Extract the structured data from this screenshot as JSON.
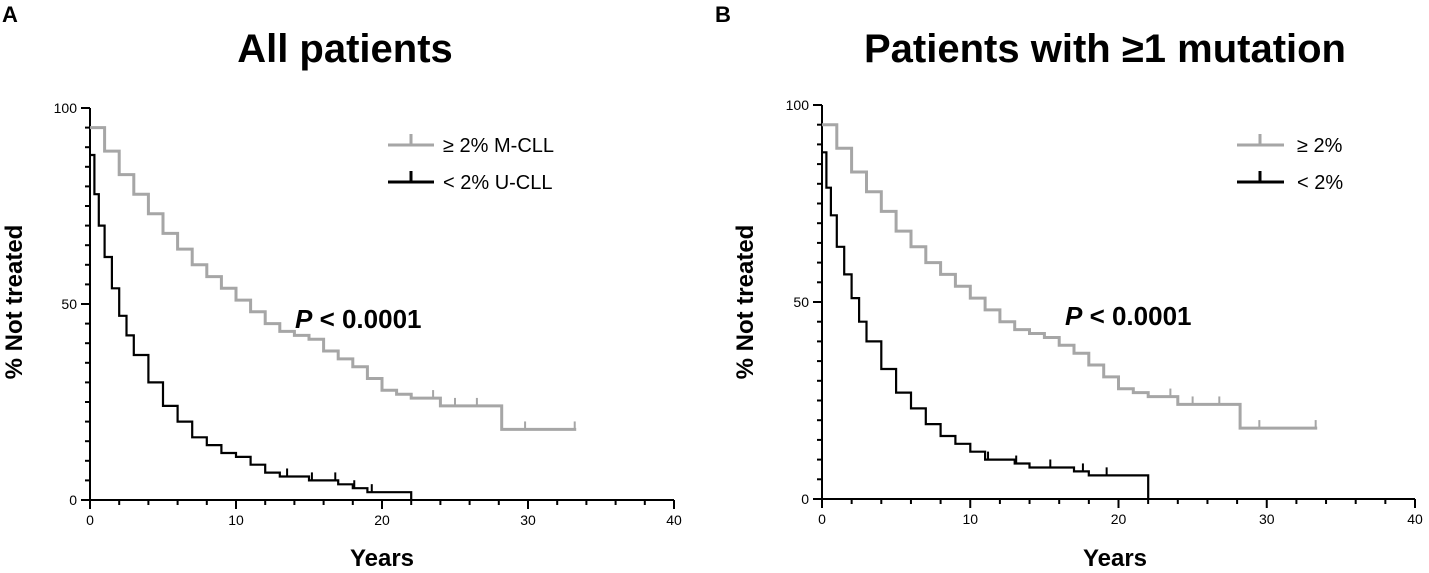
{
  "colors": {
    "high_group": "#a6a6a6",
    "low_group": "#000000",
    "axis": "#000000"
  },
  "chart_data": [
    {
      "type": "line",
      "panel": "A",
      "title": "All patients",
      "xlabel": "Years",
      "ylabel": "% Not treated",
      "xlim": [
        0,
        40
      ],
      "ylim": [
        0,
        100
      ],
      "xticks": [
        0,
        10,
        20,
        30,
        40
      ],
      "yticks": [
        0,
        50,
        100
      ],
      "annotation": {
        "prefix": "P",
        "text": " < 0.0001"
      },
      "series": [
        {
          "name": "≥ 2% M-CLL",
          "color": "#a6a6a6",
          "x": [
            0,
            1,
            2,
            3,
            4,
            5,
            6,
            7,
            8,
            9,
            10,
            11,
            12,
            13,
            14,
            15,
            16,
            17,
            18,
            19,
            20,
            21,
            22,
            23,
            24,
            25,
            26,
            27,
            28,
            28.2,
            30,
            32,
            33.3
          ],
          "y": [
            95,
            89,
            83,
            78,
            73,
            68,
            64,
            60,
            57,
            54,
            51,
            48,
            45,
            43,
            42,
            41,
            38,
            36,
            34,
            31,
            28,
            27,
            26,
            26,
            24,
            24,
            24,
            24,
            24,
            18,
            18,
            18,
            18
          ],
          "censor_x": [
            23.5,
            25,
            26.5,
            29.8,
            33.2
          ]
        },
        {
          "name": "< 2% U-CLL",
          "color": "#000000",
          "x": [
            0,
            0.3,
            0.6,
            1,
            1.5,
            2,
            2.5,
            3,
            4,
            5,
            6,
            7,
            8,
            9,
            10,
            11,
            12,
            13,
            14,
            15,
            16,
            17,
            18,
            19,
            20,
            21,
            22
          ],
          "y": [
            88,
            78,
            70,
            62,
            54,
            47,
            42,
            37,
            30,
            24,
            20,
            16,
            14,
            12,
            11,
            9,
            7,
            6,
            6,
            5,
            5,
            4,
            3,
            2,
            2,
            2,
            0
          ],
          "censor_x": [
            13.5,
            15.2,
            16.8,
            18.1,
            19.3
          ]
        }
      ]
    },
    {
      "type": "line",
      "panel": "B",
      "title": "Patients with ≥1 mutation",
      "xlabel": "Years",
      "ylabel": "% Not treated",
      "xlim": [
        0,
        40
      ],
      "ylim": [
        0,
        100
      ],
      "xticks": [
        0,
        10,
        20,
        30,
        40
      ],
      "yticks": [
        0,
        50,
        100
      ],
      "annotation": {
        "prefix": "P",
        "text": " < 0.0001"
      },
      "series": [
        {
          "name": "≥ 2%",
          "color": "#a6a6a6",
          "x": [
            0,
            1,
            2,
            3,
            4,
            5,
            6,
            7,
            8,
            9,
            10,
            11,
            12,
            13,
            14,
            15,
            16,
            17,
            18,
            19,
            20,
            21,
            22,
            23,
            24,
            25,
            26,
            27,
            28,
            28.2,
            30,
            32,
            33.4
          ],
          "y": [
            95,
            89,
            83,
            78,
            73,
            68,
            64,
            60,
            57,
            54,
            51,
            48,
            45,
            43,
            42,
            41,
            39,
            37,
            34,
            31,
            28,
            27,
            26,
            26,
            24,
            24,
            24,
            24,
            24,
            18,
            18,
            18,
            18
          ],
          "censor_x": [
            23.5,
            25,
            26.8,
            29.5,
            33.3
          ]
        },
        {
          "name": "< 2%",
          "color": "#000000",
          "x": [
            0,
            0.3,
            0.6,
            1,
            1.5,
            2,
            2.5,
            3,
            4,
            5,
            6,
            7,
            8,
            9,
            10,
            11,
            12,
            13,
            14,
            15,
            16,
            17,
            18,
            19,
            20,
            21,
            21.9,
            22
          ],
          "y": [
            88,
            79,
            72,
            64,
            57,
            51,
            45,
            40,
            33,
            27,
            23,
            19,
            16,
            14,
            12,
            10,
            10,
            9,
            8,
            8,
            8,
            7,
            6,
            6,
            6,
            6,
            6,
            0
          ],
          "censor_x": [
            11.2,
            13.1,
            15.4,
            17.6,
            19.2
          ]
        }
      ]
    }
  ]
}
